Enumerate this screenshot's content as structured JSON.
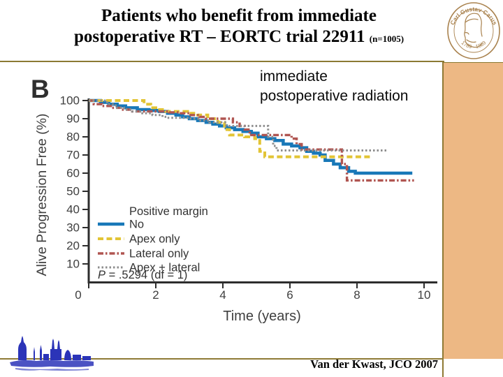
{
  "slide": {
    "title_line1": "Patients who benefit from immediate",
    "title_line2": "postoperative RT – EORTC trial 22911",
    "title_suffix": "(n=1005)",
    "annotation_line1": "immediate",
    "annotation_line2": "postoperative radiation",
    "citation": "Van der Kwast, JCO 2007",
    "accent_line_color": "#8b7a33",
    "sidebar_color": "#edb884"
  },
  "logo": {
    "name": "Carl Gustav Carus university seal",
    "arc_text_top": "Carl Gustav Carus",
    "arc_text_bottom": "1789 - 1869",
    "color": "#a9824e"
  },
  "chart_data": {
    "type": "line",
    "variant": "kaplan-meier-step",
    "panel_label": "B",
    "xlabel": "Time (years)",
    "ylabel": "Alive Progression Free (%)",
    "xlim": [
      0,
      10
    ],
    "ylim": [
      0,
      100
    ],
    "xticks": [
      0,
      2,
      4,
      6,
      8,
      10
    ],
    "yticks": [
      10,
      20,
      30,
      40,
      50,
      60,
      70,
      80,
      90,
      100
    ],
    "grid": false,
    "legend_title": "Positive margin",
    "legend_position": "lower-left",
    "stats_note_p": "P",
    "stats_note_rest": " = .5294 (df = 1)",
    "axis_color": "#2d2d2d",
    "text_color": "#3f3f3f",
    "series": [
      {
        "name": "No",
        "color": "#1878b8",
        "style": "solid",
        "points": [
          [
            0,
            100
          ],
          [
            0.35,
            99
          ],
          [
            0.6,
            98
          ],
          [
            0.85,
            97
          ],
          [
            1.1,
            96
          ],
          [
            1.45,
            95
          ],
          [
            1.8,
            94.5
          ],
          [
            2.1,
            94
          ],
          [
            2.35,
            93
          ],
          [
            2.6,
            92
          ],
          [
            2.8,
            91
          ],
          [
            3.0,
            90
          ],
          [
            3.25,
            89
          ],
          [
            3.5,
            88
          ],
          [
            3.7,
            87
          ],
          [
            3.9,
            86
          ],
          [
            4.1,
            85
          ],
          [
            4.35,
            84
          ],
          [
            4.6,
            83
          ],
          [
            4.85,
            82
          ],
          [
            5.05,
            80
          ],
          [
            5.3,
            79
          ],
          [
            5.55,
            78
          ],
          [
            5.8,
            76
          ],
          [
            6.05,
            75
          ],
          [
            6.3,
            74
          ],
          [
            6.5,
            72
          ],
          [
            6.7,
            71
          ],
          [
            6.9,
            70
          ],
          [
            7.05,
            67
          ],
          [
            7.3,
            65
          ],
          [
            7.5,
            63
          ],
          [
            7.75,
            61
          ],
          [
            7.95,
            60
          ],
          [
            9.65,
            60
          ]
        ]
      },
      {
        "name": "Apex only",
        "color": "#e2c435",
        "style": "dashed",
        "points": [
          [
            0,
            100
          ],
          [
            1.65,
            98
          ],
          [
            1.85,
            96
          ],
          [
            2.0,
            95
          ],
          [
            2.3,
            94
          ],
          [
            2.95,
            93
          ],
          [
            3.25,
            92
          ],
          [
            3.55,
            90
          ],
          [
            3.85,
            88
          ],
          [
            4.05,
            84
          ],
          [
            4.2,
            81
          ],
          [
            4.65,
            80
          ],
          [
            4.95,
            79
          ],
          [
            5.1,
            72
          ],
          [
            5.25,
            69
          ],
          [
            8.45,
            69
          ]
        ]
      },
      {
        "name": "Lateral only",
        "color": "#b05551",
        "style": "dash-dot",
        "points": [
          [
            0,
            100
          ],
          [
            0.15,
            98
          ],
          [
            0.4,
            97
          ],
          [
            0.7,
            96
          ],
          [
            0.95,
            95
          ],
          [
            1.3,
            94
          ],
          [
            2.4,
            93.5
          ],
          [
            2.7,
            93
          ],
          [
            3.0,
            92
          ],
          [
            3.3,
            91
          ],
          [
            3.5,
            90
          ],
          [
            4.3,
            88
          ],
          [
            4.5,
            86
          ],
          [
            4.65,
            84
          ],
          [
            4.8,
            81
          ],
          [
            6.05,
            79
          ],
          [
            6.2,
            76
          ],
          [
            6.35,
            73
          ],
          [
            7.55,
            65
          ],
          [
            7.7,
            56
          ],
          [
            9.7,
            56
          ]
        ]
      },
      {
        "name": "Apex + lateral",
        "color": "#8e8e8e",
        "style": "dotted",
        "points": [
          [
            0,
            100
          ],
          [
            0.55,
            98
          ],
          [
            0.8,
            96
          ],
          [
            1.05,
            95
          ],
          [
            1.3,
            94
          ],
          [
            1.6,
            93
          ],
          [
            1.9,
            92
          ],
          [
            2.2,
            91
          ],
          [
            2.35,
            90.5
          ],
          [
            3.0,
            90
          ],
          [
            3.3,
            89
          ],
          [
            3.6,
            88
          ],
          [
            4.1,
            86
          ],
          [
            5.35,
            80
          ],
          [
            5.5,
            75
          ],
          [
            5.6,
            72.5
          ],
          [
            8.9,
            72.5
          ]
        ]
      }
    ]
  }
}
